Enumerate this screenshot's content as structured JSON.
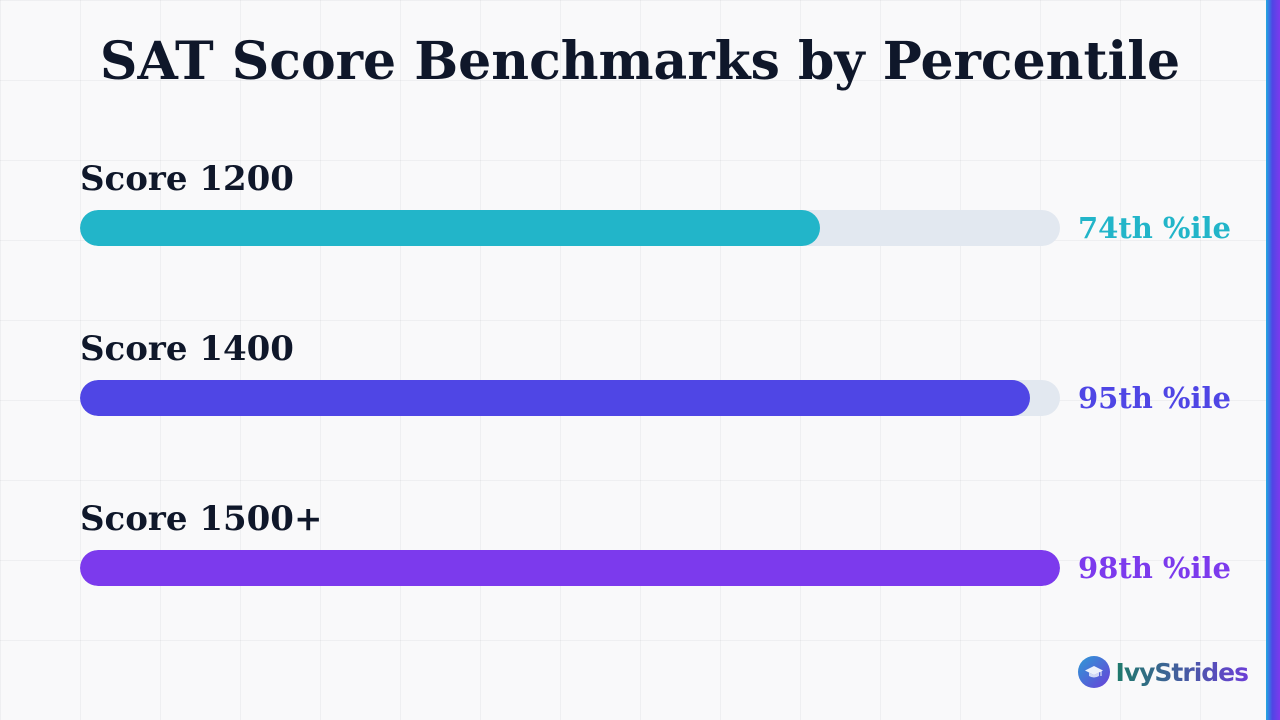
{
  "chart_data": {
    "type": "bar",
    "orientation": "horizontal",
    "title": "SAT Score Benchmarks by Percentile",
    "categories": [
      "Score 1200",
      "Score 1400",
      "Score 1500+"
    ],
    "values": [
      74,
      95,
      98
    ],
    "value_labels": [
      "74th %ile",
      "95th %ile",
      "98th %ile"
    ],
    "xlim": [
      0,
      98
    ],
    "colors": [
      "#22b5c9",
      "#4f46e5",
      "#7c3aed"
    ],
    "track_color": "#e2e8f0",
    "grid": false,
    "legend": "none"
  },
  "brand": {
    "name": "IvyStrides",
    "icon": "graduation-cap-icon"
  },
  "accent_colors": [
    "#22a9e0",
    "#4f46e5",
    "#7c3aed"
  ]
}
